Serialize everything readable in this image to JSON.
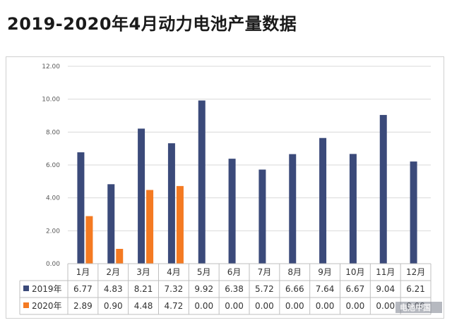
{
  "page": {
    "title": "2019-2020年4月动力电池产量数据"
  },
  "watermark": "电池中国",
  "colors": {
    "series2019": "#3b4a7a",
    "series2020": "#f47a22",
    "grid": "#d9d9d9",
    "axis": "#bfbfbf"
  },
  "chart_data": {
    "type": "bar",
    "title": "2019-2020年4月动力电池产量数据",
    "categories": [
      "1月",
      "2月",
      "3月",
      "4月",
      "5月",
      "6月",
      "7月",
      "8月",
      "9月",
      "10月",
      "11月",
      "12月"
    ],
    "series": [
      {
        "name": "2019年",
        "values": [
          6.77,
          4.83,
          8.21,
          7.32,
          9.92,
          6.38,
          5.72,
          6.66,
          7.64,
          6.67,
          9.04,
          6.21
        ],
        "labels": [
          "6.77",
          "4.83",
          "8.21",
          "7.32",
          "9.92",
          "6.38",
          "5.72",
          "6.66",
          "7.64",
          "6.67",
          "9.04",
          "6.21"
        ]
      },
      {
        "name": "2020年",
        "values": [
          2.89,
          0.9,
          4.48,
          4.72,
          0.0,
          0.0,
          0.0,
          0.0,
          0.0,
          0.0,
          0.0,
          0.0
        ],
        "labels": [
          "2.89",
          "0.90",
          "4.48",
          "4.72",
          "0.00",
          "0.00",
          "0.00",
          "0.00",
          "0.00",
          "0.00",
          "0.00",
          "0.00"
        ]
      }
    ],
    "ylim": [
      0,
      12
    ],
    "yticks": [
      0,
      2,
      4,
      6,
      8,
      10,
      12
    ],
    "ytick_labels": [
      "0.00",
      "2.00",
      "4.00",
      "6.00",
      "8.00",
      "10.00",
      "12.00"
    ],
    "grid": true,
    "legend": "data-table-left",
    "xlabel": "",
    "ylabel": ""
  }
}
